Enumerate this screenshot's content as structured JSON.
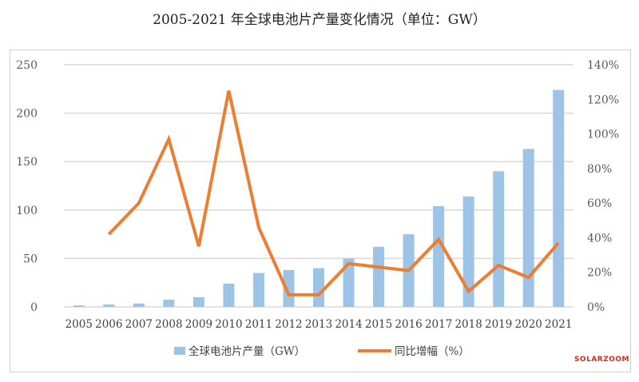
{
  "chart_data": {
    "type": "bar+line",
    "title": "2005-2021 年全球电池片产量变化情况（单位：GW）",
    "categories": [
      "2005",
      "2006",
      "2007",
      "2008",
      "2009",
      "2010",
      "2011",
      "2012",
      "2013",
      "2014",
      "2015",
      "2016",
      "2017",
      "2018",
      "2019",
      "2020",
      "2021"
    ],
    "series": [
      {
        "name": "全球电池片产量（GW）",
        "type": "bar",
        "axis": "left",
        "color": "#9dc3e6",
        "values": [
          1.5,
          2.5,
          3.5,
          7.5,
          10,
          24,
          35,
          38,
          40,
          50,
          62,
          75,
          104,
          114,
          140,
          163,
          224
        ]
      },
      {
        "name": "同比增幅（%）",
        "type": "line",
        "axis": "right",
        "color": "#ed7d31",
        "values": [
          null,
          42,
          60,
          97,
          35,
          125,
          46,
          7,
          7,
          25,
          23,
          21,
          39,
          9,
          24,
          17,
          37
        ]
      }
    ],
    "ylim_left": [
      0,
      250
    ],
    "yticks_left": [
      "0",
      "50",
      "100",
      "150",
      "200",
      "250"
    ],
    "ylim_right": [
      0,
      140
    ],
    "yticks_right": [
      "0%",
      "20%",
      "40%",
      "60%",
      "80%",
      "100%",
      "120%",
      "140%"
    ],
    "grid": true,
    "legend": "bottom"
  },
  "watermark": "SOLARZOOM"
}
